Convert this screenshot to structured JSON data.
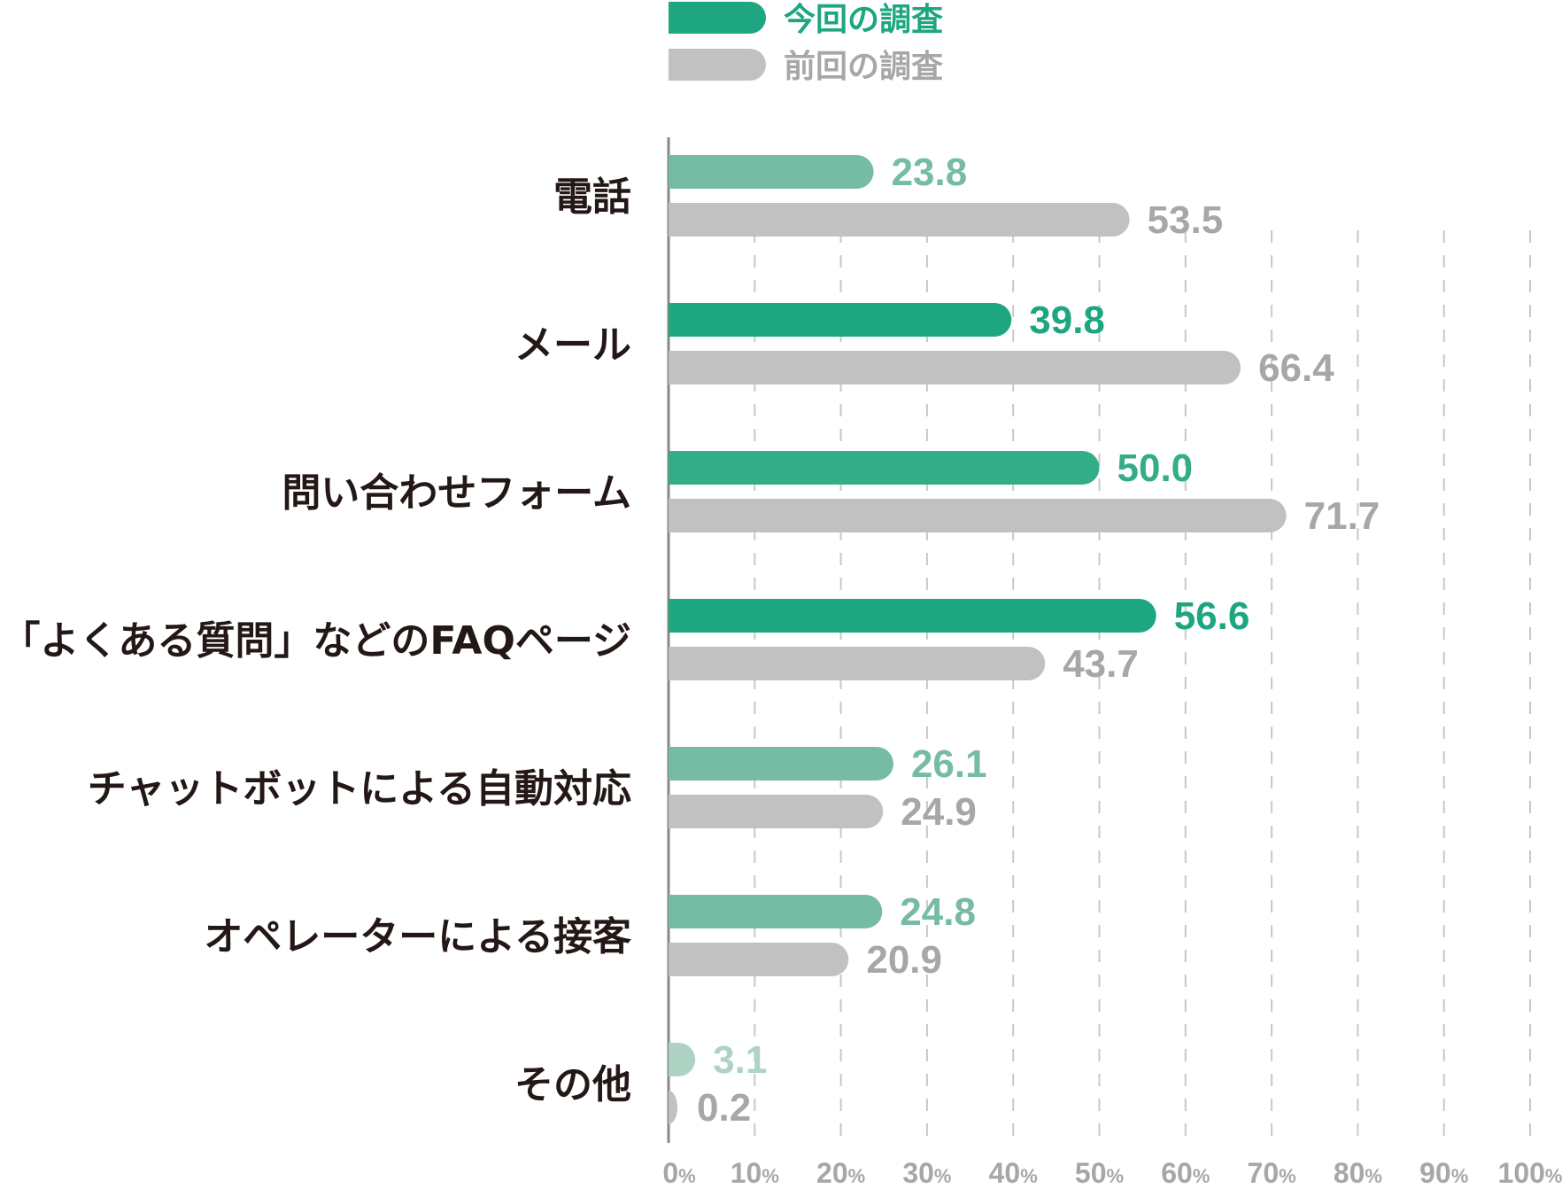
{
  "chart_data": {
    "type": "bar",
    "orientation": "horizontal",
    "categories": [
      "電話",
      "メール",
      "問い合わせフォーム",
      "「よくある質問」などのFAQページ",
      "チャットボットによる自動対応",
      "オペレーターによる接客",
      "その他"
    ],
    "series": [
      {
        "name": "今回の調査",
        "values": [
          23.8,
          39.8,
          50.0,
          56.6,
          26.1,
          24.8,
          3.1
        ],
        "value_labels": [
          "23.8",
          "39.8",
          "50.0",
          "56.6",
          "26.1",
          "24.8",
          "3.1"
        ],
        "color": "#1da67f",
        "bar_colors": [
          "#76bba3",
          "#1da67f",
          "#33ad88",
          "#1da67f",
          "#76bba3",
          "#76bba3",
          "#aed2c4"
        ]
      },
      {
        "name": "前回の調査",
        "values": [
          53.5,
          66.4,
          71.7,
          43.7,
          24.9,
          20.9,
          0.2
        ],
        "value_labels": [
          "53.5",
          "66.4",
          "71.7",
          "43.7",
          "24.9",
          "20.9",
          "0.2"
        ],
        "color": "#c1c1c1",
        "bar_colors": [
          "#c1c1c1",
          "#c1c1c1",
          "#c1c1c1",
          "#c1c1c1",
          "#c1c1c1",
          "#c1c1c1",
          "#c1c1c1"
        ]
      }
    ],
    "xlim": [
      0,
      100
    ],
    "xticks": [
      {
        "num": "0",
        "unit": "%"
      },
      {
        "num": "10",
        "unit": "%"
      },
      {
        "num": "20",
        "unit": "%"
      },
      {
        "num": "30",
        "unit": "%"
      },
      {
        "num": "40",
        "unit": "%"
      },
      {
        "num": "50",
        "unit": "%"
      },
      {
        "num": "60",
        "unit": "%"
      },
      {
        "num": "70",
        "unit": "%"
      },
      {
        "num": "80",
        "unit": "%"
      },
      {
        "num": "90",
        "unit": "%"
      },
      {
        "num": "100",
        "unit": "%"
      }
    ],
    "grid": "vertical-dashed",
    "legend_position": "top",
    "title": "",
    "xlabel": "",
    "ylabel": ""
  },
  "colors": {
    "current_label": "#1da67f",
    "previous_label": "#a7a7a7",
    "gridline": "#c8c8c8",
    "axis": "#888888",
    "category_text": "#231815"
  }
}
